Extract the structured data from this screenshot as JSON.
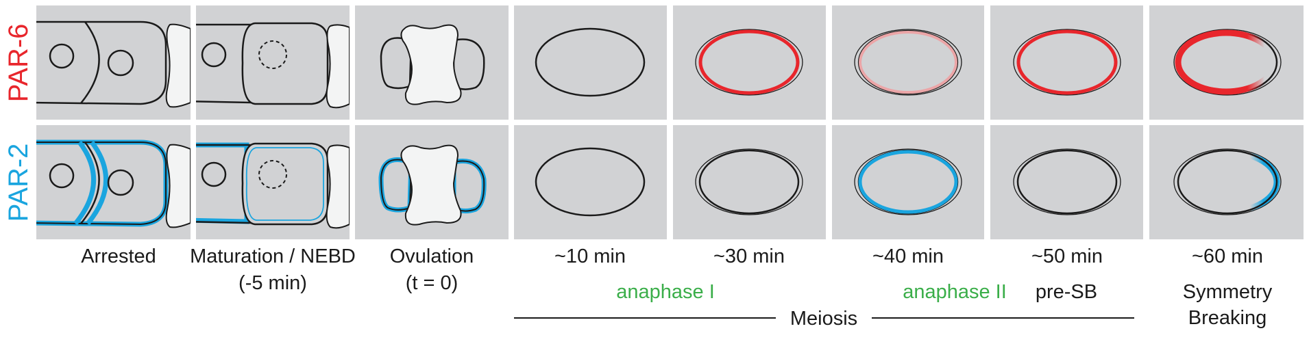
{
  "rows": [
    {
      "label": "PAR-6",
      "color": "#e8262c"
    },
    {
      "label": "PAR-2",
      "color": "#1aa5df"
    }
  ],
  "stages": [
    {
      "id": "arrested",
      "line1": "Arrested",
      "line2": ""
    },
    {
      "id": "maturation",
      "line1": "Maturation / NEBD",
      "line2": "(-5 min)"
    },
    {
      "id": "ovulation",
      "line1": "Ovulation",
      "line2": "(t = 0)"
    },
    {
      "id": "t10",
      "line1": "~10 min",
      "line2": ""
    },
    {
      "id": "t30",
      "line1": "~30 min",
      "line2": ""
    },
    {
      "id": "t40",
      "line1": "~40 min",
      "line2": ""
    },
    {
      "id": "t50",
      "line1": "~50 min",
      "line2": ""
    },
    {
      "id": "t60",
      "line1": "~60 min",
      "line2": ""
    }
  ],
  "phase_labels": [
    {
      "text": "anaphase I",
      "color": "#3aae49"
    },
    {
      "text": "anaphase II",
      "color": "#3aae49"
    },
    {
      "text": "pre-SB",
      "color": "#1a1a1a"
    },
    {
      "text": "Symmetry",
      "color": "#1a1a1a"
    },
    {
      "text": "Breaking",
      "color": "#1a1a1a"
    }
  ],
  "meiosis_label": "Meiosis",
  "colors": {
    "panel_bg": "#d1d2d4",
    "cell_fill": "#f3f4f4",
    "outline": "#1a1a1a",
    "par6": "#e8262c",
    "par6_faint": "#eba5a7",
    "par2": "#1aa5df",
    "green": "#3aae49"
  }
}
